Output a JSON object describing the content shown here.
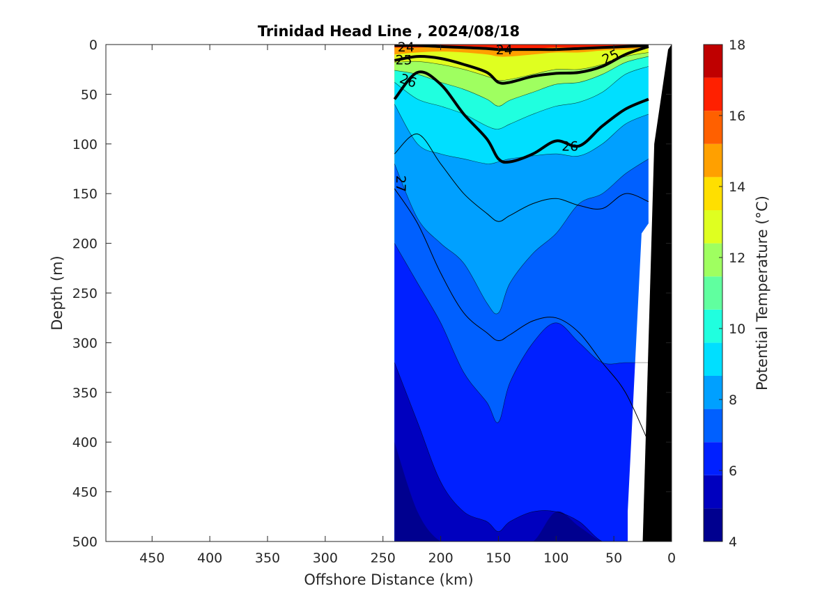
{
  "chart_data": {
    "type": "heatmap",
    "title": "Trinidad Head Line , 2024/08/18",
    "xlabel": "Offshore Distance (km)",
    "ylabel": "Depth (m)",
    "xlim": [
      490,
      0
    ],
    "ylim": [
      500,
      0
    ],
    "x_direction": "reversed",
    "y_direction": "reversed (depth increases downward)",
    "x_ticks": [
      "450",
      "400",
      "350",
      "300",
      "250",
      "200",
      "150",
      "100",
      "50",
      "0"
    ],
    "y_ticks": [
      "0",
      "50",
      "100",
      "150",
      "200",
      "250",
      "300",
      "350",
      "400",
      "450",
      "500"
    ],
    "colorbar": {
      "label": "Potential Temperature (°C)",
      "min": 4,
      "max": 18,
      "ticks": [
        "4",
        "6",
        "8",
        "10",
        "12",
        "14",
        "16",
        "18"
      ],
      "colors": [
        "#00008f",
        "#0000bf",
        "#0020ff",
        "#0060ff",
        "#00a0ff",
        "#00dfff",
        "#20ffdf",
        "#60ff9f",
        "#9fff60",
        "#dfff20",
        "#ffdf00",
        "#ffa000",
        "#ff6000",
        "#ff2000",
        "#bf0000"
      ]
    },
    "data_extent_km": [
      0,
      240
    ],
    "temperature_isotherm_depths_m": {
      "x_km": [
        240,
        220,
        200,
        180,
        160,
        150,
        140,
        120,
        100,
        80,
        60,
        40,
        20
      ],
      "T16": [
        3,
        3,
        2,
        2,
        3,
        4,
        4,
        4,
        3,
        3,
        2,
        2,
        2
      ],
      "T14": [
        10,
        8,
        7,
        8,
        10,
        12,
        12,
        10,
        8,
        8,
        6,
        5,
        4
      ],
      "T12": [
        18,
        17,
        20,
        25,
        32,
        36,
        35,
        30,
        25,
        25,
        20,
        12,
        8
      ],
      "T11": [
        26,
        30,
        38,
        45,
        55,
        62,
        56,
        48,
        40,
        38,
        30,
        18,
        12
      ],
      "T10": [
        38,
        55,
        62,
        70,
        82,
        85,
        80,
        70,
        62,
        58,
        48,
        30,
        22
      ],
      "T9": [
        60,
        100,
        110,
        115,
        120,
        118,
        115,
        112,
        110,
        112,
        100,
        80,
        70
      ],
      "T8": [
        120,
        175,
        200,
        220,
        260,
        270,
        240,
        210,
        190,
        160,
        150,
        130,
        115
      ],
      "T7": [
        200,
        240,
        280,
        330,
        360,
        380,
        340,
        300,
        280,
        300,
        320,
        320,
        320
      ],
      "T6": [
        320,
        380,
        440,
        470,
        480,
        490,
        480,
        470,
        470,
        480,
        500,
        500,
        500
      ],
      "T5": [
        400,
        470,
        500,
        500,
        500,
        500,
        500,
        500,
        470,
        485,
        500,
        500,
        500
      ]
    },
    "density_contours_sigma_theta": {
      "x_km": [
        240,
        220,
        200,
        180,
        160,
        150,
        140,
        120,
        100,
        80,
        60,
        40,
        20
      ],
      "24": [
        1,
        1,
        2,
        3,
        4,
        5,
        5,
        5,
        5,
        4,
        3,
        2,
        1
      ],
      "25": [
        16,
        12,
        14,
        20,
        28,
        38,
        38,
        32,
        29,
        28,
        22,
        10,
        2
      ],
      "26": [
        55,
        28,
        40,
        70,
        95,
        115,
        118,
        110,
        97,
        102,
        82,
        65,
        55
      ],
      "26.5": [
        110,
        90,
        120,
        150,
        170,
        178,
        172,
        160,
        155,
        162,
        165,
        150,
        158
      ],
      "27": [
        145,
        180,
        230,
        270,
        290,
        298,
        292,
        278,
        275,
        290,
        320,
        350,
        400
      ]
    },
    "contour_labels": [
      "24",
      "25",
      "26",
      "24",
      "25",
      "26",
      "27"
    ],
    "bathymetry": "black wedge near the coast (0–30 km offshore)"
  }
}
